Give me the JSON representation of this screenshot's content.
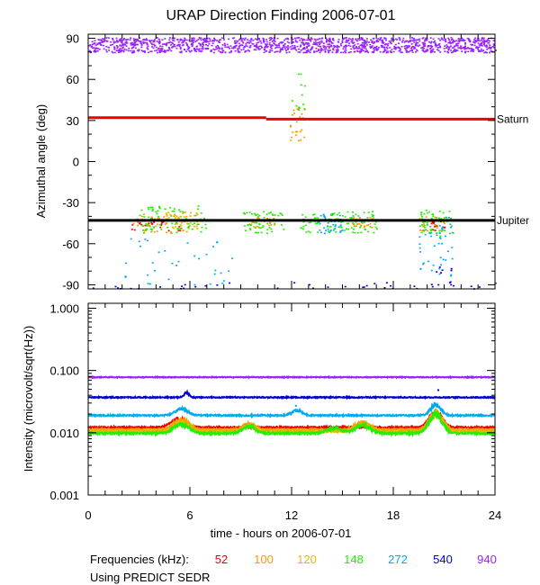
{
  "title": "URAP Direction Finding  2006-07-01",
  "x_axis": {
    "label": "time - hours on 2006-07-01",
    "range": [
      0,
      24
    ],
    "ticks": [
      0,
      6,
      12,
      18,
      24
    ],
    "tick_labels": [
      "0",
      "6",
      "12",
      "18",
      "24"
    ]
  },
  "footer": {
    "freq_label": "Frequencies (kHz):",
    "source_label": "Using PREDICT SEDR"
  },
  "frequencies": [
    {
      "label": "52",
      "color": "#ee0000"
    },
    {
      "label": "100",
      "color": "#ff9900"
    },
    {
      "label": "120",
      "color": "#e6b800"
    },
    {
      "label": "148",
      "color": "#22ee00"
    },
    {
      "label": "272",
      "color": "#00aaee"
    },
    {
      "label": "540",
      "color": "#0000cc"
    },
    {
      "label": "940",
      "color": "#9922ff"
    }
  ],
  "chart_data": [
    {
      "type": "scatter",
      "name": "azimuth-panel",
      "ylabel": "Azimuthal angle (deg)",
      "ylim": [
        -93,
        93
      ],
      "yticks": [
        90,
        60,
        30,
        0,
        -30,
        -60,
        -90
      ],
      "ytick_labels": [
        "90",
        "60",
        "30",
        "0",
        "-30",
        "-60",
        "-90"
      ],
      "reference_lines": [
        {
          "label": "Saturn",
          "color": "#ee0000",
          "segments": [
            {
              "x": [
                0,
                10.5
              ],
              "y": 32
            },
            {
              "x": [
                10.5,
                24
              ],
              "y": 31
            }
          ]
        },
        {
          "label": "Jupiter",
          "color": "#000000",
          "segments": [
            {
              "x": [
                0,
                24
              ],
              "y": -43
            }
          ]
        }
      ],
      "clusters": [
        {
          "freq": "940",
          "x": [
            0,
            24
          ],
          "y": [
            80,
            91
          ],
          "count": 1400
        },
        {
          "freq": "52",
          "x": [
            2.5,
            5.5
          ],
          "y": [
            -50,
            -40
          ],
          "count": 30
        },
        {
          "freq": "100",
          "x": [
            2.5,
            6.5
          ],
          "y": [
            -52,
            -38
          ],
          "count": 50
        },
        {
          "freq": "120",
          "x": [
            4.5,
            6.5
          ],
          "y": [
            -50,
            -36
          ],
          "count": 40
        },
        {
          "freq": "148",
          "x": [
            3.0,
            7.0
          ],
          "y": [
            -52,
            -32
          ],
          "count": 70
        },
        {
          "freq": "148",
          "x": [
            9.0,
            11.5
          ],
          "y": [
            -52,
            -36
          ],
          "count": 60
        },
        {
          "freq": "100",
          "x": [
            9.5,
            11.0
          ],
          "y": [
            -48,
            -40
          ],
          "count": 20
        },
        {
          "freq": "100",
          "x": [
            11.8,
            12.8
          ],
          "y": [
            15,
            40
          ],
          "count": 25
        },
        {
          "freq": "148",
          "x": [
            11.8,
            12.8
          ],
          "y": [
            35,
            65
          ],
          "count": 12
        },
        {
          "freq": "148",
          "x": [
            12.5,
            13.5
          ],
          "y": [
            -52,
            -38
          ],
          "count": 25
        },
        {
          "freq": "272",
          "x": [
            13.5,
            15.0
          ],
          "y": [
            -52,
            -38
          ],
          "count": 40
        },
        {
          "freq": "148",
          "x": [
            14.0,
            17.0
          ],
          "y": [
            -52,
            -36
          ],
          "count": 80
        },
        {
          "freq": "100",
          "x": [
            15.5,
            16.8
          ],
          "y": [
            -48,
            -40
          ],
          "count": 25
        },
        {
          "freq": "148",
          "x": [
            19.5,
            21.5
          ],
          "y": [
            -54,
            -34
          ],
          "count": 60
        },
        {
          "freq": "100",
          "x": [
            19.5,
            21.0
          ],
          "y": [
            -50,
            -40
          ],
          "count": 25
        },
        {
          "freq": "272",
          "x": [
            19.5,
            21.5
          ],
          "y": [
            -85,
            -38
          ],
          "count": 45
        },
        {
          "freq": "52",
          "x": [
            20.2,
            21.0
          ],
          "y": [
            -50,
            -42
          ],
          "count": 10
        },
        {
          "freq": "272",
          "x": [
            2.0,
            8.5
          ],
          "y": [
            -90,
            -55
          ],
          "count": 35
        },
        {
          "freq": "540",
          "x": [
            0,
            24
          ],
          "y": [
            -93,
            -88
          ],
          "count": 40
        },
        {
          "freq": "540",
          "x": [
            20.5,
            21.5
          ],
          "y": [
            -90,
            -75
          ],
          "count": 8
        }
      ]
    },
    {
      "type": "line",
      "name": "intensity-panel",
      "ylabel": "Intensity (microvolt/sqrt(Hz))",
      "yscale": "log",
      "ylim": [
        0.001,
        1.2
      ],
      "yticks": [
        1.0,
        0.1,
        0.01,
        0.001
      ],
      "ytick_labels": [
        "1.000",
        "0.100",
        "0.010",
        "0.001"
      ],
      "series": [
        {
          "freq": "940",
          "base": 0.078,
          "noise": 0.03,
          "bumps": []
        },
        {
          "freq": "540",
          "base": 0.037,
          "noise": 0.04,
          "bumps": [
            {
              "x": 5.8,
              "amp": 0.2,
              "w": 0.2
            }
          ]
        },
        {
          "freq": "272",
          "base": 0.019,
          "noise": 0.05,
          "bumps": [
            {
              "x": 5.5,
              "amp": 0.25,
              "w": 0.5
            },
            {
              "x": 12.3,
              "amp": 0.2,
              "w": 0.4
            },
            {
              "x": 20.5,
              "amp": 0.5,
              "w": 0.4
            }
          ]
        },
        {
          "freq": "52",
          "base": 0.0122,
          "noise": 0.05,
          "bumps": [
            {
              "x": 5.3,
              "amp": 0.35,
              "w": 0.6
            },
            {
              "x": 20.5,
              "amp": 0.7,
              "w": 0.5
            }
          ]
        },
        {
          "freq": "100",
          "base": 0.0112,
          "noise": 0.06,
          "bumps": [
            {
              "x": 5.5,
              "amp": 0.45,
              "w": 0.6
            },
            {
              "x": 9.5,
              "amp": 0.25,
              "w": 0.5
            },
            {
              "x": 16.2,
              "amp": 0.3,
              "w": 0.6
            },
            {
              "x": 20.5,
              "amp": 0.9,
              "w": 0.5
            }
          ]
        },
        {
          "freq": "120",
          "base": 0.0105,
          "noise": 0.06,
          "bumps": [
            {
              "x": 5.5,
              "amp": 0.4,
              "w": 0.6
            },
            {
              "x": 9.5,
              "amp": 0.25,
              "w": 0.5
            },
            {
              "x": 16.2,
              "amp": 0.3,
              "w": 0.6
            },
            {
              "x": 20.5,
              "amp": 0.9,
              "w": 0.5
            }
          ]
        },
        {
          "freq": "148",
          "base": 0.0098,
          "noise": 0.07,
          "bumps": [
            {
              "x": 5.5,
              "amp": 0.4,
              "w": 0.6
            },
            {
              "x": 9.5,
              "amp": 0.3,
              "w": 0.5
            },
            {
              "x": 14.5,
              "amp": 0.2,
              "w": 0.6
            },
            {
              "x": 16.2,
              "amp": 0.35,
              "w": 0.6
            },
            {
              "x": 20.5,
              "amp": 1.0,
              "w": 0.5
            }
          ]
        }
      ]
    }
  ]
}
